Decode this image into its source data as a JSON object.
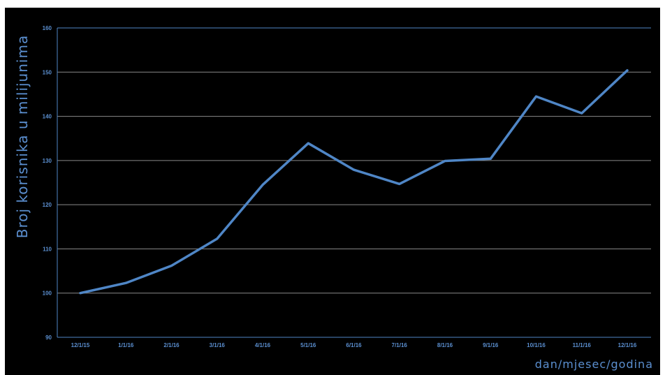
{
  "chart_data": {
    "type": "line",
    "title": "",
    "xlabel": "dan/mjesec/godina",
    "ylabel": "Broj korisnika u milijunima",
    "categories": [
      "12/1/15",
      "1/1/16",
      "2/1/16",
      "3/1/16",
      "4/1/16",
      "5/1/16",
      "6/1/16",
      "7/1/16",
      "8/1/16",
      "9/1/16",
      "10/1/16",
      "11/1/16",
      "12/1/16"
    ],
    "series": [
      {
        "values": [
          100,
          102.3,
          106.2,
          112.3,
          124.5,
          133.9,
          127.9,
          124.7,
          129.9,
          130.4,
          144.5,
          140.7,
          150.4
        ]
      }
    ],
    "ylim": [
      90,
      160
    ],
    "yticks": [
      "90",
      "100",
      "110",
      "120",
      "130",
      "140",
      "150",
      "160"
    ],
    "grid": true,
    "legend": "none",
    "colors": {
      "background": "#000000",
      "line": "#4f86c6",
      "grid": "#8a8a8a",
      "axis": "#4f86c6",
      "text": "#5b8fd0"
    }
  }
}
